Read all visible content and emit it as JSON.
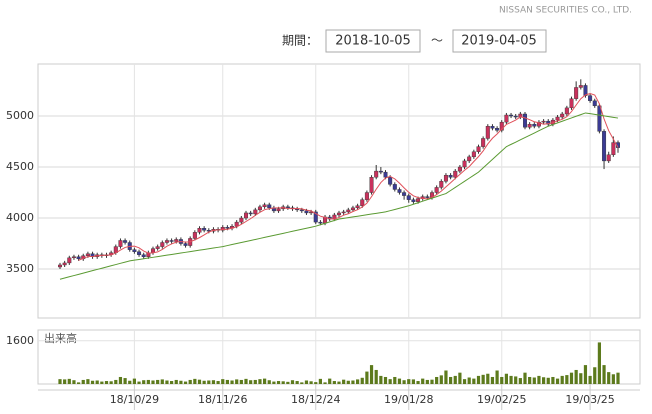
{
  "header": {
    "company": "NISSAN SECURITIES CO., LTD.",
    "period_label": "期間：",
    "start": "2018-10-05",
    "separator": "～",
    "end": "2019-04-05"
  },
  "chart_data": {
    "type": "candlestick",
    "categories": [
      null,
      null,
      null,
      null,
      null,
      null,
      null,
      null,
      null,
      null,
      null,
      null,
      null,
      null,
      null,
      null,
      "18/10/29",
      null,
      null,
      null,
      null,
      null,
      null,
      null,
      null,
      null,
      null,
      null,
      null,
      null,
      null,
      null,
      null,
      null,
      null,
      "18/11/26",
      null,
      null,
      null,
      null,
      null,
      null,
      null,
      null,
      null,
      null,
      null,
      null,
      null,
      null,
      null,
      null,
      null,
      null,
      null,
      "18/12/24",
      null,
      null,
      null,
      null,
      null,
      null,
      null,
      null,
      null,
      null,
      null,
      null,
      null,
      null,
      null,
      null,
      null,
      null,
      null,
      "19/01/28",
      null,
      null,
      null,
      null,
      null,
      null,
      null,
      null,
      null,
      null,
      null,
      null,
      null,
      null,
      null,
      null,
      null,
      null,
      null,
      "19/02/25",
      null,
      null,
      null,
      null,
      null,
      null,
      null,
      null,
      null,
      null,
      null,
      null,
      null,
      null,
      null,
      null,
      null,
      null,
      "19/03/25",
      null,
      null,
      null,
      null,
      null,
      null
    ],
    "open": [
      3520,
      3540,
      3560,
      3610,
      3620,
      3600,
      3630,
      3650,
      3620,
      3640,
      3630,
      3640,
      3660,
      3720,
      3780,
      3760,
      3690,
      3670,
      3640,
      3620,
      3660,
      3700,
      3720,
      3760,
      3780,
      3770,
      3790,
      3750,
      3730,
      3800,
      3860,
      3900,
      3880,
      3870,
      3890,
      3880,
      3910,
      3900,
      3920,
      3960,
      4000,
      4050,
      4040,
      4080,
      4110,
      4130,
      4100,
      4070,
      4090,
      4110,
      4100,
      4090,
      4080,
      4070,
      4050,
      4060,
      3960,
      3950,
      4010,
      3990,
      4030,
      4050,
      4060,
      4080,
      4100,
      4120,
      4180,
      4250,
      4400,
      4460,
      4450,
      4400,
      4330,
      4280,
      4250,
      4220,
      4180,
      4160,
      4190,
      4210,
      4200,
      4250,
      4300,
      4360,
      4420,
      4400,
      4460,
      4500,
      4560,
      4600,
      4650,
      4700,
      4780,
      4900,
      4880,
      4860,
      4940,
      5010,
      5000,
      4990,
      5020,
      4890,
      4920,
      4900,
      4940,
      4950,
      4920,
      4960,
      4990,
      5020,
      5080,
      5170,
      5280,
      5300,
      5200,
      5150,
      5100,
      4850,
      4560,
      4620,
      4740
    ],
    "high": [
      3560,
      3580,
      3630,
      3640,
      3640,
      3650,
      3670,
      3670,
      3660,
      3660,
      3660,
      3680,
      3740,
      3800,
      3800,
      3780,
      3710,
      3690,
      3660,
      3680,
      3720,
      3740,
      3780,
      3800,
      3800,
      3810,
      3810,
      3770,
      3820,
      3880,
      3920,
      3920,
      3900,
      3910,
      3910,
      3930,
      3930,
      3940,
      3980,
      4020,
      4070,
      4070,
      4100,
      4130,
      4150,
      4150,
      4120,
      4110,
      4130,
      4130,
      4120,
      4110,
      4100,
      4090,
      4080,
      4080,
      3980,
      4030,
      4030,
      4050,
      4070,
      4080,
      4100,
      4120,
      4140,
      4200,
      4270,
      4420,
      4520,
      4500,
      4470,
      4420,
      4350,
      4300,
      4270,
      4240,
      4200,
      4210,
      4230,
      4230,
      4270,
      4320,
      4380,
      4440,
      4440,
      4480,
      4520,
      4580,
      4620,
      4670,
      4720,
      4800,
      4920,
      4920,
      4900,
      4960,
      5030,
      5030,
      5020,
      5040,
      5040,
      4940,
      4940,
      4960,
      4970,
      4970,
      4980,
      5010,
      5040,
      5100,
      5190,
      5340,
      5360,
      5320,
      5220,
      5170,
      5120,
      4870,
      4650,
      4800,
      4760
    ],
    "low": [
      3500,
      3520,
      3540,
      3590,
      3580,
      3580,
      3610,
      3600,
      3600,
      3610,
      3610,
      3620,
      3640,
      3700,
      3740,
      3670,
      3650,
      3620,
      3600,
      3600,
      3640,
      3680,
      3700,
      3740,
      3750,
      3750,
      3730,
      3710,
      3710,
      3780,
      3840,
      3860,
      3850,
      3850,
      3860,
      3860,
      3880,
      3880,
      3900,
      3940,
      3980,
      4020,
      4020,
      4060,
      4090,
      4080,
      4050,
      4050,
      4070,
      4080,
      4070,
      4060,
      4050,
      4030,
      4030,
      3940,
      3930,
      3930,
      3970,
      3970,
      4010,
      4030,
      4040,
      4060,
      4080,
      4100,
      4160,
      4230,
      4380,
      4430,
      4380,
      4310,
      4260,
      4230,
      4180,
      4150,
      4140,
      4140,
      4170,
      4180,
      4180,
      4230,
      4280,
      4340,
      4380,
      4380,
      4440,
      4480,
      4540,
      4580,
      4630,
      4680,
      4760,
      4860,
      4840,
      4840,
      4920,
      4980,
      4970,
      4970,
      4870,
      4870,
      4880,
      4880,
      4920,
      4900,
      4900,
      4940,
      4970,
      5000,
      5060,
      5150,
      5260,
      5180,
      5130,
      5080,
      4830,
      4480,
      4540,
      4600,
      4640
    ],
    "close": [
      3540,
      3560,
      3610,
      3620,
      3600,
      3630,
      3650,
      3620,
      3640,
      3630,
      3640,
      3660,
      3720,
      3780,
      3760,
      3690,
      3670,
      3640,
      3620,
      3660,
      3700,
      3720,
      3760,
      3780,
      3770,
      3790,
      3750,
      3730,
      3800,
      3860,
      3900,
      3880,
      3870,
      3890,
      3880,
      3910,
      3900,
      3920,
      3960,
      4000,
      4050,
      4040,
      4080,
      4110,
      4130,
      4100,
      4070,
      4090,
      4110,
      4100,
      4090,
      4080,
      4070,
      4050,
      4060,
      3960,
      3950,
      4010,
      3990,
      4030,
      4050,
      4060,
      4080,
      4100,
      4120,
      4180,
      4250,
      4400,
      4460,
      4450,
      4400,
      4330,
      4280,
      4250,
      4220,
      4180,
      4160,
      4190,
      4210,
      4200,
      4250,
      4300,
      4360,
      4420,
      4400,
      4460,
      4500,
      4560,
      4600,
      4650,
      4700,
      4780,
      4900,
      4880,
      4860,
      4940,
      5010,
      5000,
      4990,
      5020,
      4890,
      4920,
      4900,
      4940,
      4950,
      4920,
      4960,
      4990,
      5020,
      5080,
      5170,
      5280,
      5300,
      5200,
      5150,
      5100,
      4850,
      4560,
      4620,
      4740,
      4690
    ],
    "up_color": "#c9315c",
    "down_color": "#3b3b94",
    "lines": [
      {
        "color": "#e0505a",
        "values": [
          null,
          null,
          null,
          null,
          3586,
          3604,
          3622,
          3624,
          3628,
          3634,
          3636,
          3638,
          3658,
          3686,
          3712,
          3722,
          3724,
          3708,
          3676,
          3656,
          3658,
          3668,
          3692,
          3724,
          3746,
          3764,
          3770,
          3764,
          3768,
          3786,
          3808,
          3834,
          3862,
          3880,
          3884,
          3886,
          3890,
          3900,
          3914,
          3938,
          3966,
          3994,
          4026,
          4056,
          4082,
          4092,
          4098,
          4100,
          4100,
          4094,
          4092,
          4094,
          4090,
          4078,
          4070,
          4044,
          4018,
          4006,
          3994,
          3988,
          4006,
          4028,
          4042,
          4064,
          4082,
          4108,
          4146,
          4210,
          4282,
          4348,
          4392,
          4408,
          4384,
          4342,
          4296,
          4252,
          4218,
          4200,
          4192,
          4188,
          4202,
          4230,
          4264,
          4306,
          4346,
          4388,
          4428,
          4468,
          4504,
          4554,
          4602,
          4658,
          4726,
          4782,
          4824,
          4872,
          4918,
          4938,
          4960,
          4992,
          4982,
          4964,
          4944,
          4934,
          4920,
          4926,
          4934,
          4952,
          4968,
          4994,
          5044,
          5108,
          5170,
          5206,
          5220,
          5206,
          5120,
          4972,
          4856,
          4774,
          4692
        ]
      },
      {
        "color": "#5a9a32",
        "values": [
          3400,
          3412,
          3424,
          3436,
          3448,
          3460,
          3472,
          3484,
          3496,
          3508,
          3520,
          3532,
          3544,
          3556,
          3568,
          3580,
          3587,
          3594,
          3601,
          3608,
          3615,
          3622,
          3629,
          3636,
          3643,
          3650,
          3657,
          3664,
          3671,
          3678,
          3685,
          3692,
          3699,
          3706,
          3713,
          3720,
          3730,
          3740,
          3750,
          3760,
          3770,
          3780,
          3790,
          3800,
          3810,
          3820,
          3830,
          3840,
          3850,
          3860,
          3870,
          3880,
          3890,
          3900,
          3910,
          3920,
          3934,
          3948,
          3962,
          3976,
          3990,
          3997,
          4004,
          4011,
          4018,
          4025,
          4032,
          4039,
          4046,
          4053,
          4060,
          4072,
          4084,
          4096,
          4108,
          4120,
          4135,
          4150,
          4165,
          4180,
          4195,
          4210,
          4225,
          4240,
          4270,
          4300,
          4330,
          4360,
          4390,
          4420,
          4450,
          4492,
          4533,
          4575,
          4617,
          4658,
          4700,
          4722,
          4744,
          4767,
          4789,
          4811,
          4833,
          4856,
          4878,
          4900,
          4916,
          4933,
          4949,
          4965,
          4981,
          4998,
          5014,
          5030,
          5023,
          5016,
          5009,
          5001,
          4994,
          4987,
          4980
        ]
      }
    ],
    "ylim": [
      3020,
      5510
    ],
    "yticks": [
      3500,
      4000,
      4500,
      5000
    ],
    "grid": true,
    "volume": {
      "label": "出来高",
      "color": "#5c7a1c",
      "ylim": [
        0,
        2000
      ],
      "yticks": [
        1600
      ],
      "values": [
        180,
        170,
        190,
        140,
        60,
        150,
        180,
        120,
        130,
        90,
        110,
        100,
        150,
        260,
        220,
        120,
        200,
        90,
        140,
        150,
        130,
        150,
        170,
        130,
        110,
        150,
        120,
        90,
        150,
        190,
        160,
        120,
        130,
        140,
        110,
        180,
        150,
        130,
        170,
        150,
        190,
        140,
        150,
        180,
        200,
        140,
        90,
        110,
        100,
        80,
        140,
        110,
        60,
        130,
        100,
        70,
        190,
        60,
        200,
        110,
        90,
        160,
        120,
        130,
        170,
        230,
        460,
        700,
        520,
        300,
        260,
        180,
        260,
        200,
        140,
        180,
        170,
        110,
        200,
        150,
        160,
        260,
        320,
        500,
        260,
        300,
        420,
        180,
        240,
        200,
        300,
        340,
        380,
        260,
        500,
        260,
        380,
        300,
        280,
        220,
        420,
        260,
        240,
        300,
        250,
        230,
        260,
        200,
        300,
        330,
        420,
        520,
        400,
        700,
        300,
        620,
        1540,
        700,
        440,
        360,
        420
      ]
    }
  }
}
